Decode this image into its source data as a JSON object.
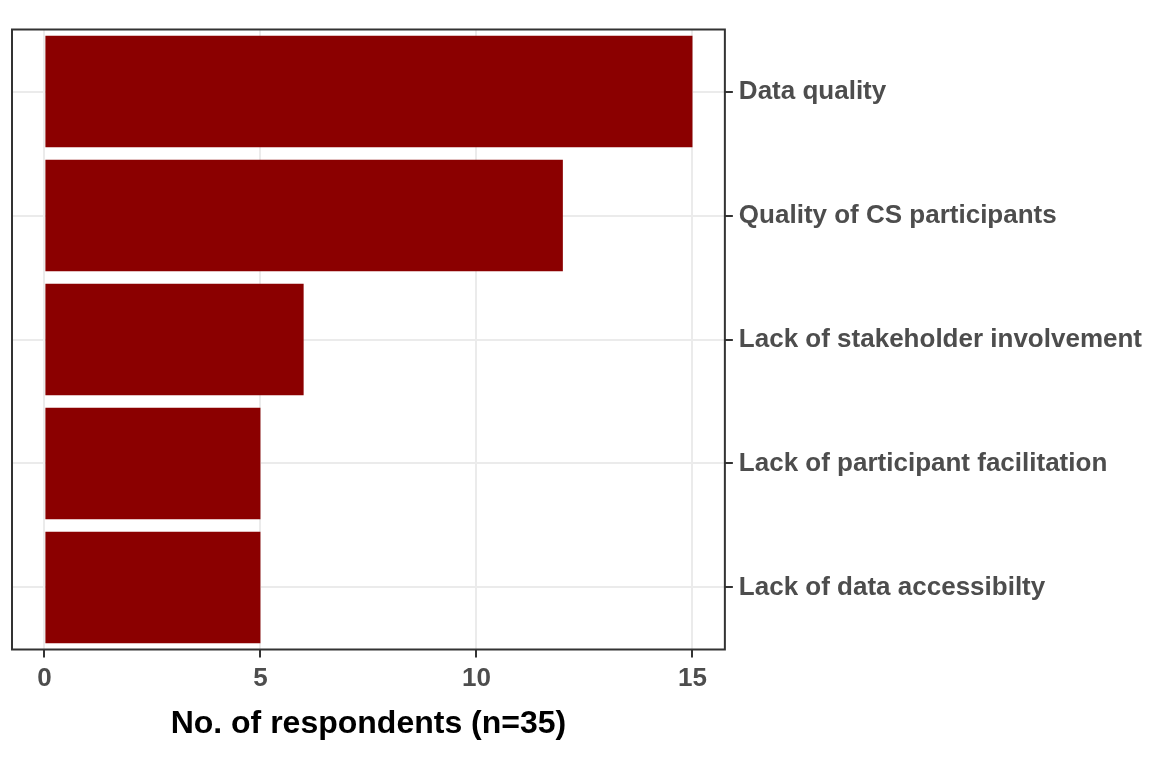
{
  "chart_data": {
    "type": "bar",
    "orientation": "horizontal",
    "xlabel": "No. of respondents (n=35)",
    "categories": [
      "Data quality",
      "Quality of CS participants",
      "Lack of stakeholder involvement",
      "Lack of participant facilitation",
      "Lack of data accessibilty"
    ],
    "values": [
      15,
      12,
      6,
      5,
      5
    ],
    "color": "#8b0000",
    "xlim": [
      -0.75,
      15.75
    ],
    "xticks": [
      0,
      5,
      10,
      15
    ],
    "grid": true
  }
}
